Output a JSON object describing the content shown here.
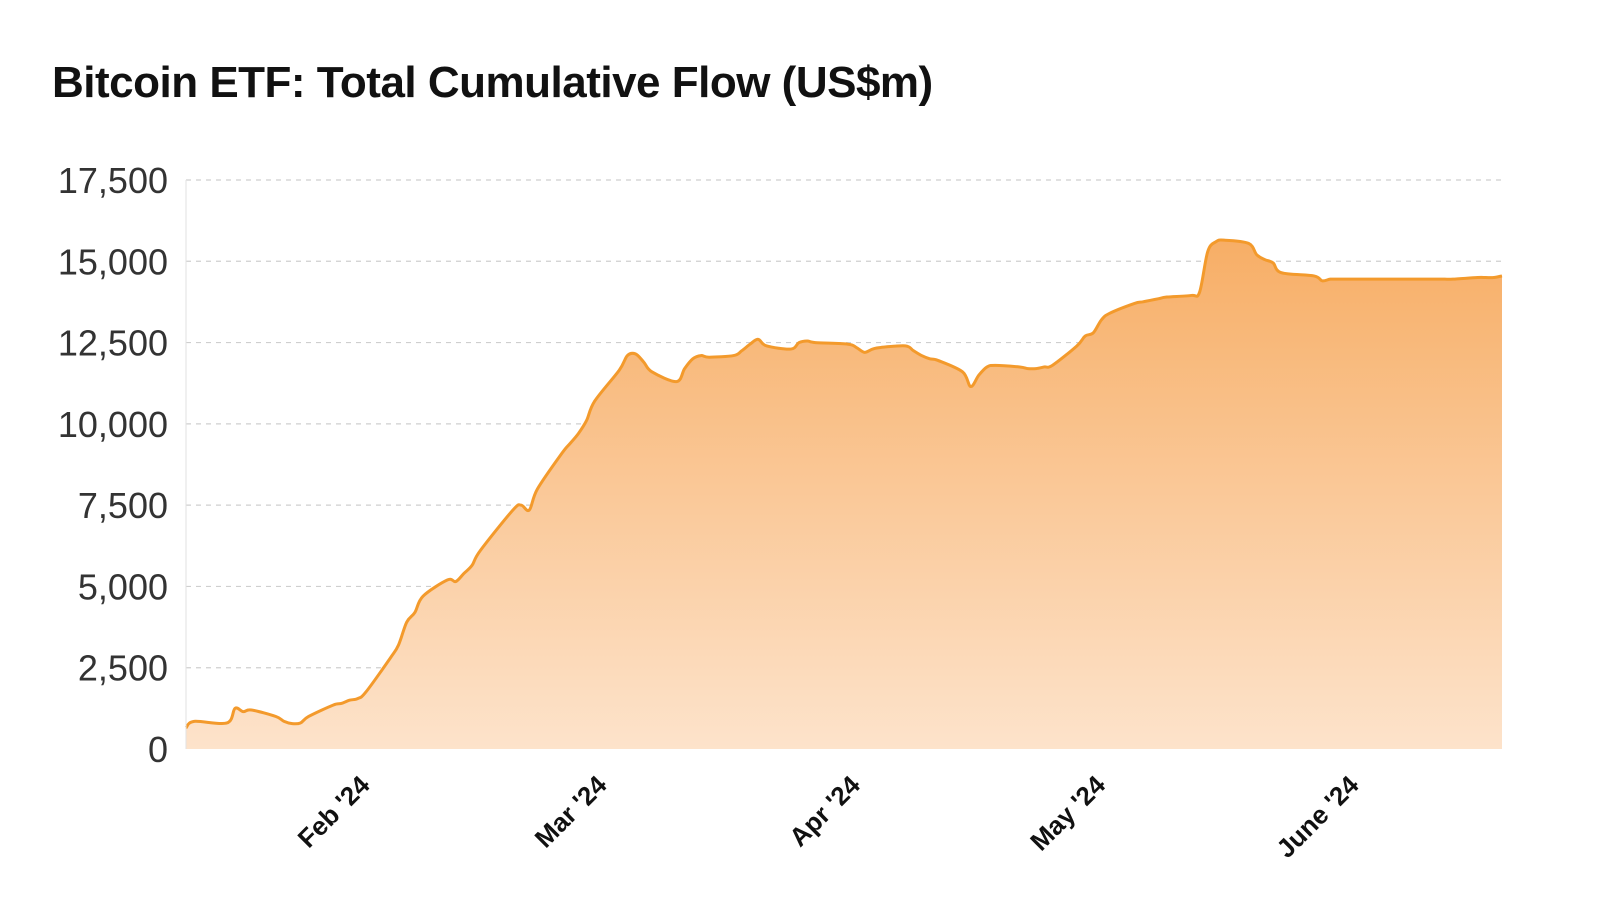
{
  "chart_data": {
    "type": "area",
    "title": "Bitcoin ETF: Total Cumulative Flow (US$m)",
    "xlabel": "",
    "ylabel": "",
    "ylim": [
      0,
      17500
    ],
    "y_ticks": [
      0,
      2500,
      5000,
      7500,
      10000,
      12500,
      15000,
      17500
    ],
    "y_tick_labels": [
      "0",
      "2,500",
      "5,000",
      "7,500",
      "10,000",
      "12,500",
      "15,000",
      "17,500"
    ],
    "x_tick_labels": [
      "Feb '24",
      "Mar '24",
      "Apr '24",
      "May '24",
      "June '24"
    ],
    "x_tick_dates": [
      "2024-02-01",
      "2024-03-01",
      "2024-04-01",
      "2024-05-01",
      "2024-06-01"
    ],
    "grid": "horizontal dashed",
    "legend": "none",
    "colors": {
      "line": "#f39a2c",
      "fill_top": "#f7ae66",
      "fill_bottom": "#fde3cb"
    },
    "series": [
      {
        "x": [
          "2024-01-11",
          "2024-01-12",
          "2024-01-16",
          "2024-01-17",
          "2024-01-18",
          "2024-01-19",
          "2024-01-22",
          "2024-01-23",
          "2024-01-24",
          "2024-01-25",
          "2024-01-26",
          "2024-01-29",
          "2024-01-30",
          "2024-01-31",
          "2024-02-01",
          "2024-02-02",
          "2024-02-05",
          "2024-02-06",
          "2024-02-07",
          "2024-02-08",
          "2024-02-09",
          "2024-02-12",
          "2024-02-13",
          "2024-02-14",
          "2024-02-15",
          "2024-02-16",
          "2024-02-20",
          "2024-02-21",
          "2024-02-22",
          "2024-02-23",
          "2024-02-26",
          "2024-02-27",
          "2024-02-28",
          "2024-02-29",
          "2024-03-01",
          "2024-03-04",
          "2024-03-05",
          "2024-03-06",
          "2024-03-07",
          "2024-03-08",
          "2024-03-11",
          "2024-03-12",
          "2024-03-13",
          "2024-03-14",
          "2024-03-15",
          "2024-03-18",
          "2024-03-19",
          "2024-03-20",
          "2024-03-21",
          "2024-03-22",
          "2024-03-25",
          "2024-03-26",
          "2024-03-27",
          "2024-03-28",
          "2024-04-01",
          "2024-04-02",
          "2024-04-03",
          "2024-04-04",
          "2024-04-05",
          "2024-04-08",
          "2024-04-09",
          "2024-04-10",
          "2024-04-11",
          "2024-04-12",
          "2024-04-15",
          "2024-04-16",
          "2024-04-17",
          "2024-04-18",
          "2024-04-19",
          "2024-04-22",
          "2024-04-23",
          "2024-04-24",
          "2024-04-25",
          "2024-04-26",
          "2024-04-29",
          "2024-04-30",
          "2024-05-01",
          "2024-05-02",
          "2024-05-03",
          "2024-05-06",
          "2024-05-07",
          "2024-05-08",
          "2024-05-09",
          "2024-05-10",
          "2024-05-13",
          "2024-05-14",
          "2024-05-15",
          "2024-05-16",
          "2024-05-17",
          "2024-05-20",
          "2024-05-21",
          "2024-05-22",
          "2024-05-23",
          "2024-05-24",
          "2024-05-28",
          "2024-05-29",
          "2024-05-30",
          "2024-05-31",
          "2024-06-03",
          "2024-06-04",
          "2024-06-05",
          "2024-06-06",
          "2024-06-07",
          "2024-06-10",
          "2024-06-11",
          "2024-06-12",
          "2024-06-13",
          "2024-06-14",
          "2024-06-17",
          "2024-06-18",
          "2024-06-19",
          "2024-06-20"
        ],
        "values": [
          650,
          850,
          800,
          1250,
          1150,
          1200,
          1000,
          850,
          780,
          800,
          1000,
          1350,
          1400,
          1500,
          1550,
          1750,
          2800,
          3200,
          3900,
          4200,
          4700,
          5200,
          5150,
          5400,
          5650,
          6100,
          7350,
          7500,
          7350,
          8000,
          9100,
          9400,
          9700,
          10100,
          10700,
          11650,
          12100,
          12150,
          11900,
          11600,
          11300,
          11700,
          12000,
          12100,
          12050,
          12100,
          12250,
          12450,
          12600,
          12400,
          12300,
          12500,
          12550,
          12500,
          12450,
          12350,
          12200,
          12300,
          12350,
          12400,
          12250,
          12100,
          12000,
          11950,
          11600,
          11150,
          11500,
          11750,
          11800,
          11750,
          11700,
          11700,
          11750,
          11800,
          12400,
          12700,
          12800,
          13200,
          13400,
          13700,
          13750,
          13800,
          13850,
          13900,
          13950,
          14050,
          15300,
          15600,
          15650,
          15550,
          15200,
          15050,
          14950,
          14650,
          14550,
          14400,
          14450,
          14450,
          14450,
          14450,
          14450,
          14450,
          14450,
          14450,
          14450,
          14450,
          14450,
          14450,
          14500,
          14500,
          14500,
          14550
        ]
      }
    ]
  }
}
